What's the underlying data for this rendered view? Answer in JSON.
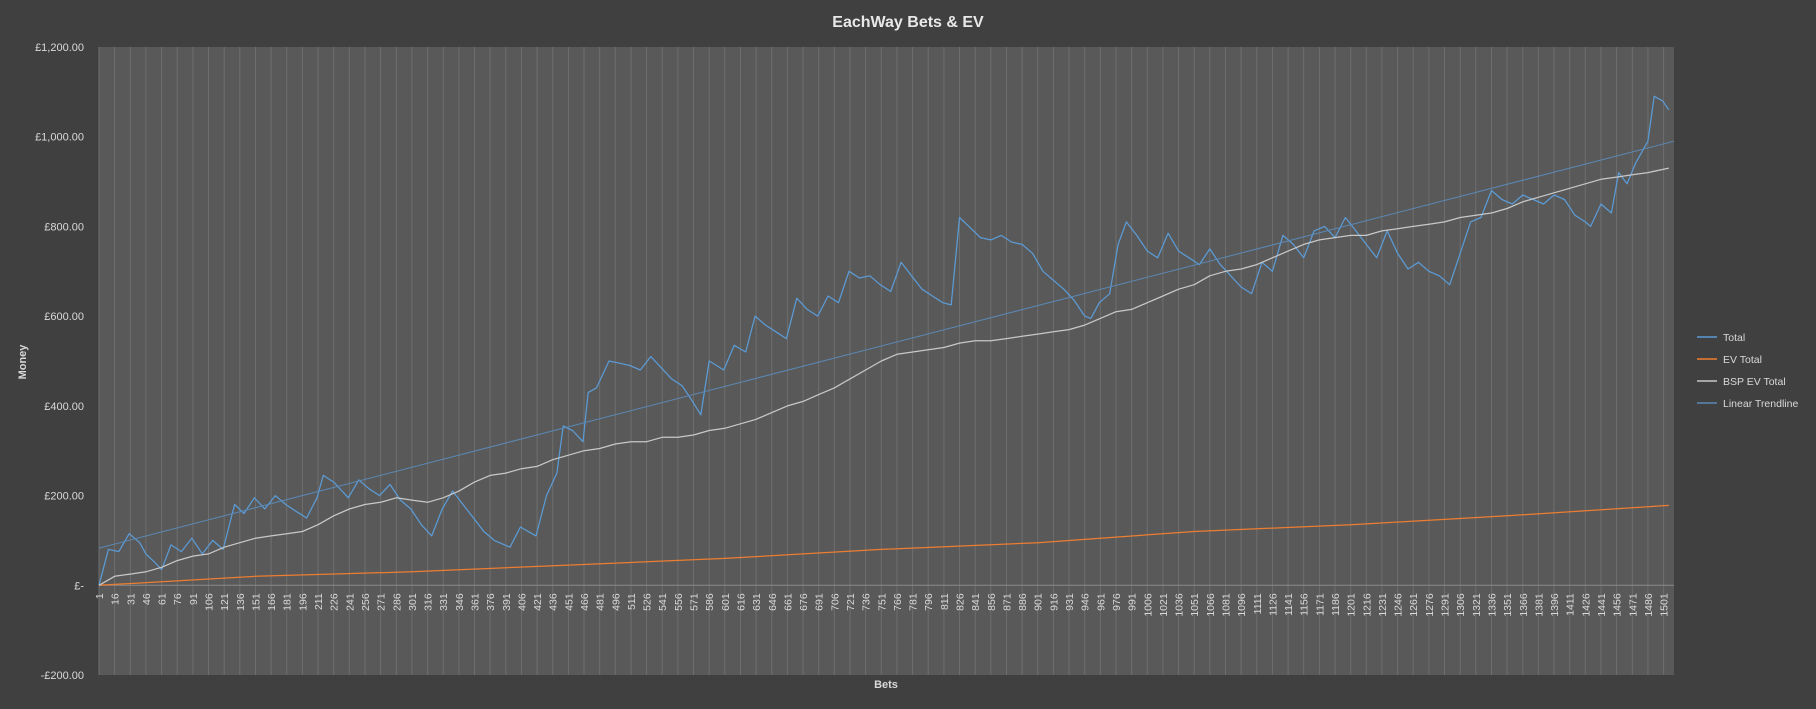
{
  "chart_data": {
    "type": "line",
    "title": "EachWay Bets & EV",
    "xlabel": "Bets",
    "ylabel": "Money",
    "ylim": [
      -200,
      1200
    ],
    "y_ticks": [
      {
        "value": -200,
        "label": "-£200.00"
      },
      {
        "value": 0,
        "label": "£-"
      },
      {
        "value": 200,
        "label": "£200.00"
      },
      {
        "value": 400,
        "label": "£400.00"
      },
      {
        "value": 600,
        "label": "£600.00"
      },
      {
        "value": 800,
        "label": "£800.00"
      },
      {
        "value": 1000,
        "label": "£1,000.00"
      },
      {
        "value": 1200,
        "label": "£1,200.00"
      }
    ],
    "x_range": [
      1,
      1511
    ],
    "x_tick_start": 1,
    "x_tick_step": 15,
    "x_tick_end": 1501,
    "grid": "vertical",
    "legend_position": "right",
    "series": [
      {
        "name": "Total",
        "color": "#5b9bd5",
        "points": [
          [
            1,
            0
          ],
          [
            10,
            80
          ],
          [
            20,
            75
          ],
          [
            30,
            115
          ],
          [
            40,
            95
          ],
          [
            46,
            70
          ],
          [
            55,
            50
          ],
          [
            61,
            35
          ],
          [
            70,
            90
          ],
          [
            80,
            75
          ],
          [
            90,
            105
          ],
          [
            100,
            70
          ],
          [
            110,
            100
          ],
          [
            120,
            80
          ],
          [
            131,
            180
          ],
          [
            140,
            160
          ],
          [
            150,
            195
          ],
          [
            160,
            170
          ],
          [
            170,
            200
          ],
          [
            180,
            180
          ],
          [
            190,
            165
          ],
          [
            200,
            150
          ],
          [
            210,
            195
          ],
          [
            216,
            245
          ],
          [
            226,
            230
          ],
          [
            240,
            195
          ],
          [
            250,
            235
          ],
          [
            260,
            215
          ],
          [
            270,
            200
          ],
          [
            280,
            225
          ],
          [
            290,
            190
          ],
          [
            300,
            170
          ],
          [
            310,
            135
          ],
          [
            320,
            110
          ],
          [
            330,
            170
          ],
          [
            340,
            210
          ],
          [
            350,
            180
          ],
          [
            360,
            150
          ],
          [
            370,
            120
          ],
          [
            380,
            100
          ],
          [
            395,
            85
          ],
          [
            405,
            130
          ],
          [
            420,
            110
          ],
          [
            430,
            200
          ],
          [
            440,
            250
          ],
          [
            446,
            355
          ],
          [
            455,
            345
          ],
          [
            465,
            320
          ],
          [
            470,
            430
          ],
          [
            478,
            440
          ],
          [
            490,
            500
          ],
          [
            500,
            495
          ],
          [
            510,
            490
          ],
          [
            520,
            480
          ],
          [
            530,
            510
          ],
          [
            540,
            485
          ],
          [
            550,
            460
          ],
          [
            560,
            445
          ],
          [
            570,
            410
          ],
          [
            578,
            380
          ],
          [
            586,
            500
          ],
          [
            600,
            480
          ],
          [
            610,
            535
          ],
          [
            621,
            520
          ],
          [
            630,
            600
          ],
          [
            640,
            580
          ],
          [
            650,
            565
          ],
          [
            660,
            550
          ],
          [
            670,
            640
          ],
          [
            680,
            615
          ],
          [
            690,
            600
          ],
          [
            700,
            645
          ],
          [
            710,
            630
          ],
          [
            720,
            700
          ],
          [
            730,
            685
          ],
          [
            740,
            690
          ],
          [
            750,
            670
          ],
          [
            760,
            655
          ],
          [
            770,
            720
          ],
          [
            780,
            690
          ],
          [
            790,
            660
          ],
          [
            800,
            645
          ],
          [
            810,
            630
          ],
          [
            818,
            625
          ],
          [
            826,
            820
          ],
          [
            835,
            800
          ],
          [
            846,
            775
          ],
          [
            856,
            770
          ],
          [
            866,
            780
          ],
          [
            876,
            765
          ],
          [
            886,
            760
          ],
          [
            896,
            740
          ],
          [
            906,
            700
          ],
          [
            916,
            680
          ],
          [
            926,
            660
          ],
          [
            936,
            635
          ],
          [
            946,
            600
          ],
          [
            952,
            595
          ],
          [
            960,
            630
          ],
          [
            970,
            650
          ],
          [
            978,
            760
          ],
          [
            986,
            810
          ],
          [
            996,
            780
          ],
          [
            1006,
            745
          ],
          [
            1016,
            730
          ],
          [
            1026,
            785
          ],
          [
            1036,
            745
          ],
          [
            1046,
            730
          ],
          [
            1056,
            715
          ],
          [
            1066,
            750
          ],
          [
            1076,
            715
          ],
          [
            1086,
            690
          ],
          [
            1096,
            665
          ],
          [
            1106,
            650
          ],
          [
            1116,
            720
          ],
          [
            1126,
            700
          ],
          [
            1136,
            780
          ],
          [
            1146,
            760
          ],
          [
            1156,
            730
          ],
          [
            1166,
            790
          ],
          [
            1176,
            800
          ],
          [
            1186,
            775
          ],
          [
            1196,
            820
          ],
          [
            1206,
            790
          ],
          [
            1216,
            760
          ],
          [
            1226,
            730
          ],
          [
            1236,
            790
          ],
          [
            1246,
            740
          ],
          [
            1256,
            705
          ],
          [
            1266,
            720
          ],
          [
            1276,
            700
          ],
          [
            1286,
            690
          ],
          [
            1296,
            670
          ],
          [
            1306,
            740
          ],
          [
            1316,
            810
          ],
          [
            1326,
            820
          ],
          [
            1336,
            880
          ],
          [
            1346,
            860
          ],
          [
            1356,
            850
          ],
          [
            1366,
            870
          ],
          [
            1376,
            860
          ],
          [
            1386,
            850
          ],
          [
            1396,
            870
          ],
          [
            1406,
            860
          ],
          [
            1416,
            825
          ],
          [
            1426,
            810
          ],
          [
            1431,
            800
          ],
          [
            1441,
            850
          ],
          [
            1451,
            830
          ],
          [
            1458,
            920
          ],
          [
            1466,
            895
          ],
          [
            1474,
            940
          ],
          [
            1486,
            990
          ],
          [
            1492,
            1090
          ],
          [
            1500,
            1080
          ],
          [
            1506,
            1060
          ]
        ]
      },
      {
        "name": "EV Total",
        "color": "#ed7d31",
        "points": [
          [
            1,
            0
          ],
          [
            151,
            20
          ],
          [
            301,
            30
          ],
          [
            451,
            45
          ],
          [
            601,
            60
          ],
          [
            751,
            80
          ],
          [
            901,
            95
          ],
          [
            1051,
            120
          ],
          [
            1201,
            135
          ],
          [
            1351,
            155
          ],
          [
            1506,
            178
          ]
        ]
      },
      {
        "name": "BSP EV Total",
        "color": "#c8c8c8",
        "points": [
          [
            1,
            0
          ],
          [
            16,
            20
          ],
          [
            31,
            25
          ],
          [
            46,
            30
          ],
          [
            61,
            40
          ],
          [
            76,
            55
          ],
          [
            91,
            65
          ],
          [
            106,
            70
          ],
          [
            121,
            85
          ],
          [
            136,
            95
          ],
          [
            151,
            105
          ],
          [
            166,
            110
          ],
          [
            181,
            115
          ],
          [
            196,
            120
          ],
          [
            211,
            135
          ],
          [
            226,
            155
          ],
          [
            241,
            170
          ],
          [
            256,
            180
          ],
          [
            271,
            185
          ],
          [
            286,
            195
          ],
          [
            301,
            190
          ],
          [
            316,
            185
          ],
          [
            331,
            195
          ],
          [
            346,
            210
          ],
          [
            361,
            230
          ],
          [
            376,
            245
          ],
          [
            391,
            250
          ],
          [
            406,
            260
          ],
          [
            421,
            265
          ],
          [
            436,
            280
          ],
          [
            451,
            290
          ],
          [
            466,
            300
          ],
          [
            481,
            305
          ],
          [
            496,
            315
          ],
          [
            511,
            320
          ],
          [
            526,
            320
          ],
          [
            541,
            330
          ],
          [
            556,
            330
          ],
          [
            571,
            335
          ],
          [
            586,
            345
          ],
          [
            601,
            350
          ],
          [
            616,
            360
          ],
          [
            631,
            370
          ],
          [
            646,
            385
          ],
          [
            661,
            400
          ],
          [
            676,
            410
          ],
          [
            691,
            425
          ],
          [
            706,
            440
          ],
          [
            721,
            460
          ],
          [
            736,
            480
          ],
          [
            751,
            500
          ],
          [
            766,
            515
          ],
          [
            781,
            520
          ],
          [
            796,
            525
          ],
          [
            811,
            530
          ],
          [
            826,
            540
          ],
          [
            841,
            545
          ],
          [
            856,
            545
          ],
          [
            871,
            550
          ],
          [
            886,
            555
          ],
          [
            901,
            560
          ],
          [
            916,
            565
          ],
          [
            931,
            570
          ],
          [
            946,
            580
          ],
          [
            961,
            595
          ],
          [
            976,
            610
          ],
          [
            991,
            615
          ],
          [
            1006,
            630
          ],
          [
            1021,
            645
          ],
          [
            1036,
            660
          ],
          [
            1051,
            670
          ],
          [
            1066,
            690
          ],
          [
            1081,
            700
          ],
          [
            1096,
            705
          ],
          [
            1111,
            715
          ],
          [
            1126,
            730
          ],
          [
            1141,
            745
          ],
          [
            1156,
            760
          ],
          [
            1171,
            770
          ],
          [
            1186,
            775
          ],
          [
            1201,
            780
          ],
          [
            1216,
            780
          ],
          [
            1231,
            790
          ],
          [
            1246,
            795
          ],
          [
            1261,
            800
          ],
          [
            1276,
            805
          ],
          [
            1291,
            810
          ],
          [
            1306,
            820
          ],
          [
            1321,
            825
          ],
          [
            1336,
            830
          ],
          [
            1351,
            840
          ],
          [
            1366,
            855
          ],
          [
            1381,
            865
          ],
          [
            1396,
            875
          ],
          [
            1411,
            885
          ],
          [
            1426,
            895
          ],
          [
            1441,
            905
          ],
          [
            1456,
            910
          ],
          [
            1471,
            915
          ],
          [
            1486,
            920
          ],
          [
            1506,
            930
          ]
        ]
      },
      {
        "name": "Linear Trendline",
        "color": "#5b88b4",
        "points": [
          [
            1,
            83
          ],
          [
            1511,
            990
          ]
        ]
      }
    ]
  }
}
